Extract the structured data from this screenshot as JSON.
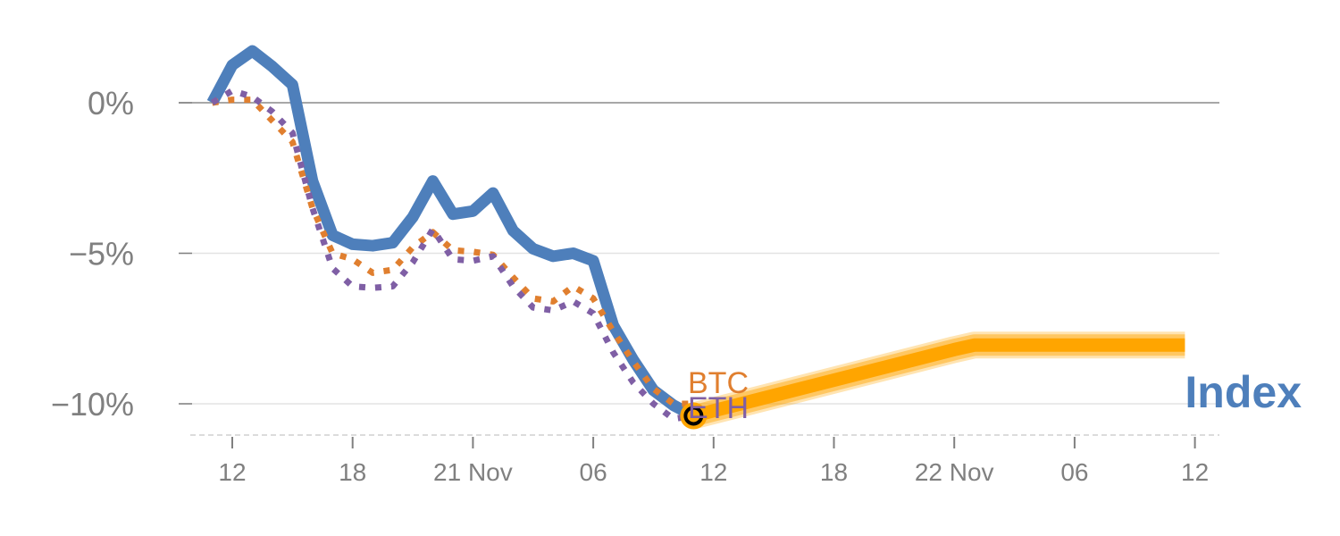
{
  "chart_data": {
    "type": "line",
    "title": "",
    "xlabel": "",
    "ylabel": "",
    "x_unit": "hours since 20 Nov 00:00",
    "xlim": [
      10,
      61
    ],
    "ylim": [
      -11,
      2.5
    ],
    "grid": "horizontal",
    "y_ticks": [
      {
        "value": 0,
        "label": "0%"
      },
      {
        "value": -5,
        "label": "−5%"
      },
      {
        "value": -10,
        "label": "−10%"
      }
    ],
    "x_ticks": [
      {
        "value": 12,
        "label": "12"
      },
      {
        "value": 18,
        "label": "18"
      },
      {
        "value": 24,
        "label": "21 Nov"
      },
      {
        "value": 30,
        "label": "06"
      },
      {
        "value": 36,
        "label": "12"
      },
      {
        "value": 42,
        "label": "18"
      },
      {
        "value": 48,
        "label": "22 Nov"
      },
      {
        "value": 54,
        "label": "06"
      },
      {
        "value": 60,
        "label": "12"
      }
    ],
    "x": [
      11,
      12,
      13,
      14,
      15,
      16,
      17,
      18,
      19,
      20,
      21,
      22,
      23,
      24,
      25,
      26,
      27,
      28,
      29,
      30,
      31,
      32,
      33,
      34,
      35
    ],
    "series": [
      {
        "name": "Index",
        "color": "#4e7fbb",
        "style": "solid",
        "values": [
          0,
          1.25,
          1.72,
          1.2,
          0.6,
          -2.6,
          -4.4,
          -4.7,
          -4.75,
          -4.65,
          -3.8,
          -2.6,
          -3.7,
          -3.6,
          -3.0,
          -4.25,
          -4.85,
          -5.1,
          -5.0,
          -5.25,
          -7.4,
          -8.55,
          -9.55,
          -10.05,
          -10.4
        ]
      },
      {
        "name": "BTC",
        "color": "#e07f2f",
        "style": "dotted",
        "values": [
          0,
          0.1,
          0.1,
          -0.6,
          -1.3,
          -3.5,
          -5.0,
          -5.2,
          -5.65,
          -5.55,
          -4.8,
          -4.3,
          -4.9,
          -4.95,
          -5.05,
          -5.8,
          -6.5,
          -6.6,
          -6.1,
          -6.5,
          -7.6,
          -8.6,
          -9.5,
          -10.0,
          -10.0
        ]
      },
      {
        "name": "ETH",
        "color": "#7f5fa5",
        "style": "dotted",
        "values": [
          0,
          0.4,
          0.2,
          -0.3,
          -1.0,
          -3.5,
          -5.5,
          -6.1,
          -6.15,
          -6.1,
          -5.3,
          -4.2,
          -5.2,
          -5.25,
          -5.1,
          -6.1,
          -6.8,
          -6.9,
          -6.6,
          -7.0,
          -8.3,
          -9.3,
          -10.0,
          -10.5,
          -10.4
        ]
      }
    ],
    "forecast": {
      "name": "Index forecast",
      "color": "#ffa500",
      "x": [
        35,
        48,
        49,
        59.5
      ],
      "values": [
        -10.4,
        -8.2,
        -8.05,
        -8.05
      ]
    },
    "end_labels": [
      "BTC",
      "ETH",
      "Index"
    ]
  }
}
